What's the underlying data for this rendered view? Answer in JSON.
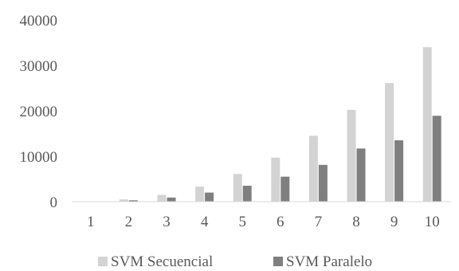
{
  "chart_data": {
    "type": "bar",
    "title": "",
    "xlabel": "",
    "ylabel": "",
    "ylim": [
      0,
      40000
    ],
    "yticks": [
      0,
      10000,
      20000,
      30000,
      40000
    ],
    "categories": [
      "1",
      "2",
      "3",
      "4",
      "5",
      "6",
      "7",
      "8",
      "9",
      "10"
    ],
    "grid": false,
    "legend_position": "bottom",
    "series": [
      {
        "name": "SVM Secuencial",
        "color": "#d3d3d3",
        "values": [
          80,
          500,
          1500,
          3300,
          6100,
          9700,
          14500,
          20200,
          26100,
          34000
        ]
      },
      {
        "name": "SVM Paralelo",
        "color": "#7f7f7f",
        "values": [
          50,
          300,
          900,
          2000,
          3500,
          5500,
          8100,
          11700,
          13500,
          18900
        ]
      }
    ]
  }
}
